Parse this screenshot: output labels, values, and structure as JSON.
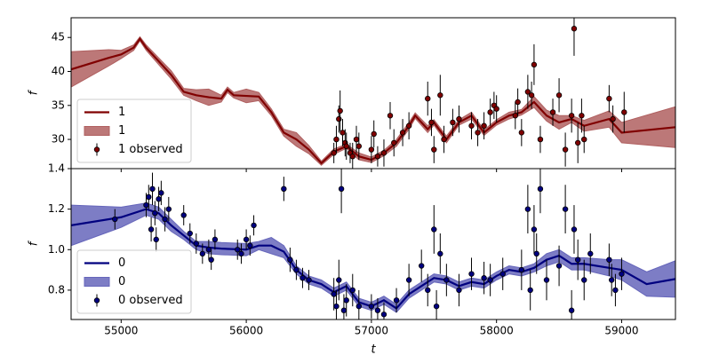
{
  "chart_data": [
    {
      "type": "line",
      "ylabel": "f",
      "legend": "lower left",
      "xlim": [
        54600,
        59430
      ],
      "xticks": [
        55000,
        56000,
        57000,
        58000,
        59000
      ],
      "ylim": [
        25.7,
        47.9
      ],
      "yticks": [
        30,
        35,
        40,
        45
      ],
      "series": [
        {
          "name": "1",
          "kind": "line",
          "color": "#800000",
          "x": [
            54600,
            54900,
            55000,
            55100,
            55150,
            55200,
            55300,
            55400,
            55500,
            55600,
            55700,
            55800,
            55850,
            55900,
            56000,
            56100,
            56200,
            56300,
            56400,
            56500,
            56600,
            56700,
            56800,
            56900,
            57000,
            57100,
            57200,
            57300,
            57350,
            57450,
            57500,
            57600,
            57700,
            57800,
            57900,
            58000,
            58100,
            58200,
            58300,
            58400,
            58500,
            58600,
            58700,
            58900,
            59000,
            59430
          ],
          "values": [
            40.3,
            42,
            42.5,
            43.5,
            44.8,
            43.5,
            41.5,
            39.5,
            37,
            36.5,
            36.2,
            36,
            37.3,
            36.5,
            36.4,
            36.3,
            34,
            31,
            30,
            28.5,
            26.5,
            28.2,
            29,
            27.5,
            27,
            28,
            29.5,
            32,
            33.5,
            31.5,
            32.5,
            30,
            32.5,
            33.5,
            31,
            32.5,
            33.5,
            34,
            35.5,
            33.5,
            32.5,
            33,
            32,
            33,
            31,
            31.8
          ]
        },
        {
          "name": "1",
          "kind": "band",
          "color": "#b06060",
          "x": [
            54600,
            54900,
            55000,
            55100,
            55150,
            55200,
            55300,
            55400,
            55500,
            55600,
            55700,
            55800,
            55850,
            55900,
            56000,
            56100,
            56200,
            56300,
            56400,
            56500,
            56600,
            56700,
            56800,
            56900,
            57000,
            57100,
            57200,
            57300,
            57350,
            57450,
            57500,
            57600,
            57700,
            57800,
            57900,
            58000,
            58100,
            58200,
            58300,
            58400,
            58500,
            58600,
            58700,
            58900,
            59000,
            59430
          ],
          "lower": [
            37.7,
            40.8,
            41.9,
            43.1,
            44.5,
            43.1,
            41,
            38.9,
            36.5,
            35.7,
            35,
            35.5,
            36.9,
            36.1,
            35.4,
            35.7,
            33.5,
            30.5,
            29,
            27.9,
            26.2,
            27.8,
            28.7,
            27,
            26.6,
            27.6,
            29,
            31.5,
            33.1,
            31,
            32.1,
            29.5,
            32.1,
            33,
            30.6,
            32.1,
            33,
            33.6,
            34.7,
            32.7,
            31.5,
            32.5,
            31.2,
            31.8,
            29.5,
            28.8
          ],
          "upper": [
            42.9,
            43.2,
            43.1,
            43.9,
            45.1,
            43.9,
            42,
            40.1,
            37.5,
            37.3,
            37.4,
            36.5,
            37.7,
            36.9,
            37.4,
            36.9,
            34.5,
            31.5,
            31,
            29.1,
            26.8,
            28.6,
            29.3,
            28,
            27.4,
            28.4,
            30,
            32.5,
            33.9,
            32,
            32.9,
            30.5,
            32.9,
            34,
            31.4,
            32.9,
            34,
            34.4,
            36.3,
            34.3,
            33.5,
            33.5,
            32.8,
            34.2,
            32.5,
            34.8
          ]
        },
        {
          "name": "1 observed",
          "kind": "errorbar",
          "color": "#800000",
          "x": [
            56700,
            56720,
            56740,
            56750,
            56770,
            56790,
            56800,
            56830,
            56850,
            56880,
            56900,
            57000,
            57020,
            57050,
            57100,
            57150,
            57180,
            57250,
            57300,
            57450,
            57480,
            57500,
            57550,
            57580,
            57650,
            57700,
            57800,
            57850,
            57900,
            57950,
            57980,
            58000,
            58150,
            58170,
            58200,
            58250,
            58280,
            58300,
            58350,
            58450,
            58500,
            58550,
            58600,
            58620,
            58650,
            58680,
            58700,
            58900,
            58930,
            59020
          ],
          "values": [
            28,
            30,
            33,
            34.2,
            31,
            29.5,
            29,
            28,
            27.5,
            30,
            29,
            28.5,
            30.8,
            27.5,
            28,
            33.5,
            29.5,
            31,
            32,
            36,
            32.5,
            28.5,
            36.5,
            30,
            32.5,
            33,
            32,
            31,
            32,
            34,
            35,
            34.5,
            33.5,
            35.5,
            31,
            37,
            36.5,
            41,
            30,
            34,
            36.5,
            28.5,
            33.5,
            46.3,
            29.5,
            33.5,
            30,
            36,
            33,
            34
          ],
          "errors": [
            1.5,
            2,
            2,
            3,
            2,
            2,
            2,
            1.5,
            2,
            2,
            2,
            2,
            2,
            1.5,
            2,
            2,
            2,
            2,
            2,
            2.5,
            2,
            2,
            3,
            2,
            2,
            2,
            2,
            2,
            2,
            2,
            2,
            2,
            2,
            2,
            2,
            2.5,
            2,
            3,
            2,
            2,
            2.5,
            2.5,
            2.5,
            4,
            3,
            2.5,
            2,
            2,
            2,
            3
          ]
        }
      ]
    },
    {
      "type": "line",
      "ylabel": "f",
      "xlabel": "t",
      "legend": "lower left",
      "xlim": [
        54600,
        59430
      ],
      "xticks": [
        55000,
        56000,
        57000,
        58000,
        59000
      ],
      "ylim": [
        0.655,
        1.4
      ],
      "yticks": [
        0.8,
        {
          "value": 1,
          "label": "1.0"
        },
        1.2,
        1.4
      ],
      "series": [
        {
          "name": "0",
          "kind": "line",
          "color": "#00007f",
          "x": [
            54600,
            55000,
            55200,
            55300,
            55400,
            55500,
            55600,
            55700,
            55800,
            56000,
            56100,
            56200,
            56300,
            56400,
            56500,
            56600,
            56700,
            56800,
            56900,
            57000,
            57100,
            57200,
            57300,
            57400,
            57500,
            57600,
            57700,
            57800,
            57900,
            58000,
            58100,
            58200,
            58300,
            58400,
            58500,
            58600,
            58700,
            58900,
            59000,
            59200,
            59430
          ],
          "values": [
            1.12,
            1.16,
            1.2,
            1.18,
            1.12,
            1.07,
            1.02,
            1.01,
            1.005,
            1.0,
            1.02,
            1.02,
            0.99,
            0.9,
            0.85,
            0.83,
            0.79,
            0.82,
            0.74,
            0.72,
            0.75,
            0.71,
            0.78,
            0.82,
            0.86,
            0.85,
            0.82,
            0.84,
            0.83,
            0.87,
            0.9,
            0.89,
            0.91,
            0.95,
            0.97,
            0.93,
            0.93,
            0.91,
            0.9,
            0.83,
            0.855
          ]
        },
        {
          "name": "0",
          "kind": "band",
          "color": "#6666bb",
          "x": [
            54600,
            55000,
            55200,
            55300,
            55400,
            55500,
            55600,
            55700,
            55800,
            56000,
            56100,
            56200,
            56300,
            56400,
            56500,
            56600,
            56700,
            56800,
            56900,
            57000,
            57100,
            57200,
            57300,
            57400,
            57500,
            57600,
            57700,
            57800,
            57900,
            58000,
            58100,
            58200,
            58300,
            58400,
            58500,
            58600,
            58700,
            58900,
            59000,
            59200,
            59430
          ],
          "lower": [
            1.02,
            1.11,
            1.17,
            1.15,
            1.09,
            1.05,
            1.0,
            0.98,
            0.975,
            0.97,
            1.0,
            0.98,
            0.96,
            0.88,
            0.83,
            0.81,
            0.77,
            0.8,
            0.72,
            0.7,
            0.73,
            0.69,
            0.76,
            0.8,
            0.84,
            0.83,
            0.8,
            0.82,
            0.81,
            0.85,
            0.88,
            0.87,
            0.89,
            0.92,
            0.94,
            0.9,
            0.9,
            0.87,
            0.85,
            0.77,
            0.765
          ],
          "upper": [
            1.22,
            1.21,
            1.23,
            1.21,
            1.15,
            1.09,
            1.04,
            1.04,
            1.035,
            1.03,
            1.04,
            1.06,
            1.02,
            0.92,
            0.87,
            0.85,
            0.81,
            0.84,
            0.76,
            0.74,
            0.77,
            0.73,
            0.8,
            0.84,
            0.88,
            0.87,
            0.84,
            0.86,
            0.85,
            0.89,
            0.92,
            0.91,
            0.93,
            0.98,
            1.0,
            0.96,
            0.96,
            0.95,
            0.95,
            0.89,
            0.945
          ]
        },
        {
          "name": "0 observed",
          "kind": "errorbar",
          "color": "#00007f",
          "x": [
            54950,
            55200,
            55220,
            55240,
            55250,
            55270,
            55280,
            55300,
            55320,
            55350,
            55380,
            55500,
            55550,
            55600,
            55650,
            55700,
            55720,
            55750,
            55930,
            55960,
            56000,
            56030,
            56060,
            56300,
            56350,
            56400,
            56450,
            56500,
            56700,
            56720,
            56740,
            56760,
            56780,
            56800,
            56850,
            56900,
            57000,
            57050,
            57100,
            57200,
            57300,
            57400,
            57450,
            57500,
            57520,
            57550,
            57600,
            57700,
            57800,
            57900,
            57950,
            58050,
            58200,
            58250,
            58270,
            58300,
            58320,
            58350,
            58400,
            58500,
            58550,
            58600,
            58620,
            58650,
            58700,
            58750,
            58900,
            58920,
            58950,
            59000
          ],
          "values": [
            1.15,
            1.22,
            1.26,
            1.1,
            1.3,
            1.18,
            1.05,
            1.25,
            1.28,
            1.15,
            1.2,
            1.17,
            1.08,
            1.03,
            0.98,
            1.0,
            0.95,
            1.05,
            1.0,
            0.98,
            1.05,
            1.02,
            1.12,
            1.3,
            0.95,
            0.9,
            0.86,
            0.85,
            0.78,
            0.72,
            0.85,
            1.3,
            0.7,
            0.75,
            0.8,
            0.72,
            0.72,
            0.7,
            0.68,
            0.75,
            0.85,
            0.92,
            0.8,
            1.1,
            0.72,
            0.98,
            0.85,
            0.8,
            0.88,
            0.86,
            0.85,
            0.88,
            0.9,
            1.2,
            0.8,
            1.1,
            0.98,
            1.3,
            0.85,
            0.92,
            1.2,
            0.7,
            1.1,
            0.95,
            0.85,
            0.98,
            0.95,
            0.85,
            0.8,
            0.88
          ],
          "errors": [
            0.05,
            0.06,
            0.06,
            0.06,
            0.08,
            0.06,
            0.06,
            0.06,
            0.06,
            0.06,
            0.06,
            0.05,
            0.05,
            0.05,
            0.05,
            0.05,
            0.05,
            0.05,
            0.05,
            0.05,
            0.05,
            0.05,
            0.05,
            0.06,
            0.06,
            0.05,
            0.05,
            0.05,
            0.08,
            0.08,
            0.1,
            0.12,
            0.08,
            0.08,
            0.08,
            0.08,
            0.06,
            0.06,
            0.06,
            0.06,
            0.08,
            0.08,
            0.08,
            0.12,
            0.08,
            0.1,
            0.08,
            0.08,
            0.08,
            0.08,
            0.08,
            0.08,
            0.1,
            0.12,
            0.1,
            0.12,
            0.1,
            0.12,
            0.1,
            0.1,
            0.12,
            0.1,
            0.12,
            0.1,
            0.1,
            0.1,
            0.08,
            0.08,
            0.08,
            0.08
          ]
        }
      ]
    }
  ]
}
